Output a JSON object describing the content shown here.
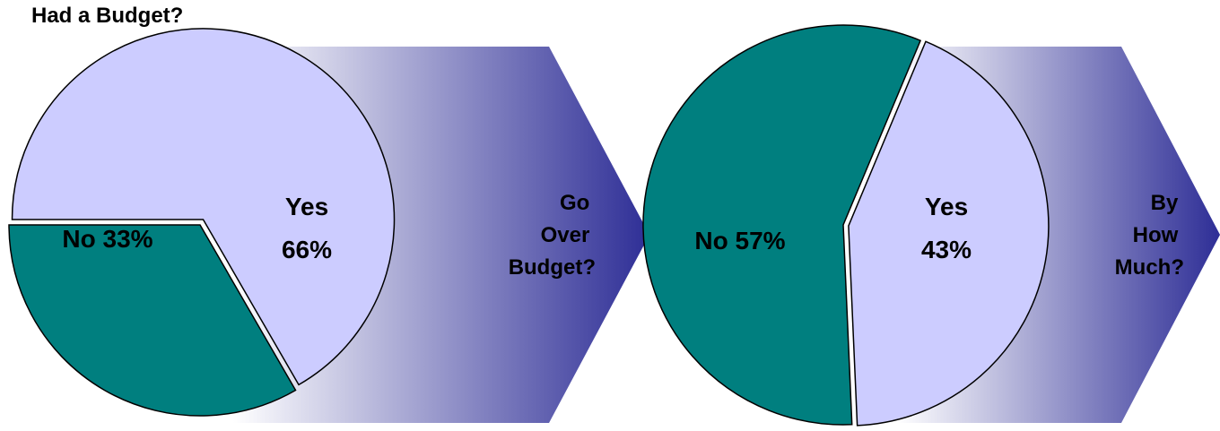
{
  "title": "Had a Budget?",
  "arrow_labels": [
    [
      "Go",
      "Over",
      "Budget?"
    ],
    [
      "By",
      "How",
      "Much?"
    ]
  ],
  "colors": {
    "no": "#007F7F",
    "yes": "#CCCCFF",
    "arrow_dark": "#2E2E96",
    "arrow_light": "#FFFFFF",
    "outline": "#000000"
  },
  "chart_data": [
    {
      "type": "pie",
      "question": "Had a Budget?",
      "slices": [
        {
          "label": "No",
          "value": 33,
          "text": "No 33%",
          "color": "#007F7F"
        },
        {
          "label": "Yes",
          "value": 66,
          "text": "Yes 66%",
          "color": "#CCCCFF"
        }
      ]
    },
    {
      "type": "pie",
      "question": "Go Over Budget?",
      "slices": [
        {
          "label": "No",
          "value": 57,
          "text": "No 57%",
          "color": "#007F7F"
        },
        {
          "label": "Yes",
          "value": 43,
          "text": "Yes 43%",
          "color": "#CCCCFF"
        }
      ]
    }
  ]
}
